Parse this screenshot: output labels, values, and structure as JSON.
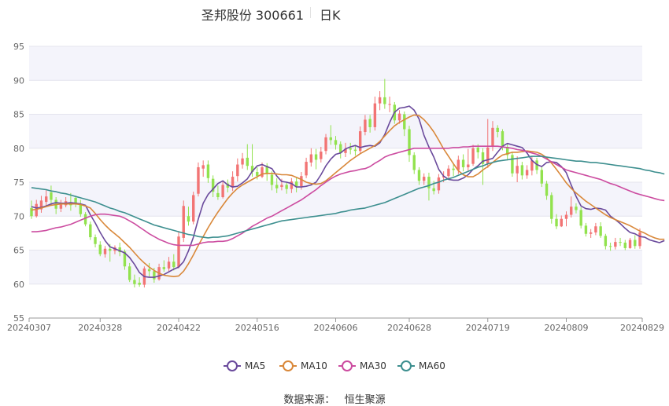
{
  "header": {
    "stock_name": "圣邦股份 300661",
    "period": "日K"
  },
  "source": {
    "label": "数据来源：",
    "provider": "恒生聚源"
  },
  "colors": {
    "up": "#f27474",
    "down": "#92e24e",
    "ma5": "#6a4a9c",
    "ma10": "#d9883a",
    "ma30": "#cc4ca0",
    "ma60": "#3d8f8f",
    "plot_bg_band": "#f4f4fb",
    "grid": "#e4e4ee"
  },
  "chart_data": {
    "type": "candlestick",
    "title": "圣邦股份 300661 日K",
    "ylim": [
      55,
      95
    ],
    "y_ticks": [
      55,
      60,
      65,
      70,
      75,
      80,
      85,
      90,
      95
    ],
    "x_tick_labels": [
      "20240307",
      "20240328",
      "20240422",
      "20240516",
      "20240606",
      "20240628",
      "20240719",
      "20240809",
      "20240829"
    ],
    "x_tick_indices": [
      0,
      14,
      30,
      46,
      62,
      77,
      93,
      109,
      124
    ],
    "candles": [
      [
        71.2,
        70.0,
        72.3,
        69.6
      ],
      [
        70.0,
        71.8,
        72.4,
        69.8
      ],
      [
        71.0,
        72.3,
        73.0,
        70.5
      ],
      [
        72.1,
        72.9,
        73.8,
        71.5
      ],
      [
        73.5,
        72.4,
        74.5,
        71.9
      ],
      [
        72.4,
        71.1,
        72.8,
        70.3
      ],
      [
        71.1,
        71.7,
        72.4,
        70.6
      ],
      [
        71.6,
        72.2,
        72.8,
        71.3
      ],
      [
        72.0,
        71.6,
        73.4,
        70.8
      ],
      [
        72.7,
        71.8,
        73.0,
        71.3
      ],
      [
        71.8,
        70.3,
        72.4,
        69.9
      ],
      [
        70.3,
        68.8,
        70.6,
        68.5
      ],
      [
        68.8,
        66.9,
        69.2,
        66.5
      ],
      [
        66.9,
        65.9,
        67.3,
        65.4
      ],
      [
        65.8,
        64.4,
        66.3,
        64.1
      ],
      [
        64.4,
        65.2,
        65.6,
        63.9
      ],
      [
        65.2,
        64.9,
        65.9,
        63.3
      ],
      [
        64.9,
        65.4,
        65.7,
        64.4
      ],
      [
        65.4,
        64.7,
        66.1,
        64.1
      ],
      [
        64.8,
        62.6,
        65.1,
        62.1
      ],
      [
        62.6,
        60.6,
        63.1,
        60.3
      ],
      [
        60.6,
        60.0,
        61.4,
        59.5
      ],
      [
        60.2,
        59.9,
        61.0,
        59.6
      ],
      [
        59.9,
        62.3,
        62.6,
        59.5
      ],
      [
        62.2,
        61.9,
        63.1,
        61.1
      ],
      [
        61.9,
        60.7,
        62.4,
        60.2
      ],
      [
        60.7,
        62.5,
        63.0,
        60.5
      ],
      [
        62.5,
        62.2,
        63.5,
        61.8
      ],
      [
        62.3,
        63.3,
        64.0,
        61.9
      ],
      [
        63.3,
        62.5,
        64.4,
        62.0
      ],
      [
        62.5,
        67.0,
        67.8,
        62.3
      ],
      [
        66.8,
        71.5,
        72.3,
        66.2
      ],
      [
        70.0,
        69.2,
        71.4,
        68.6
      ],
      [
        69.2,
        73.1,
        73.6,
        68.8
      ],
      [
        73.3,
        77.2,
        77.9,
        72.9
      ],
      [
        77.0,
        77.5,
        78.2,
        75.8
      ],
      [
        77.6,
        75.6,
        78.2,
        74.9
      ],
      [
        75.5,
        73.6,
        76.0,
        72.8
      ],
      [
        73.4,
        72.8,
        74.5,
        72.4
      ],
      [
        72.8,
        74.6,
        75.1,
        72.6
      ],
      [
        74.8,
        74.2,
        75.4,
        73.5
      ],
      [
        74.2,
        75.8,
        76.6,
        73.7
      ],
      [
        75.9,
        77.6,
        78.5,
        75.1
      ],
      [
        77.6,
        78.5,
        79.3,
        77.0
      ],
      [
        78.6,
        77.4,
        80.6,
        76.8
      ],
      [
        77.4,
        76.5,
        80.6,
        75.8
      ],
      [
        76.5,
        75.9,
        77.2,
        75.4
      ],
      [
        75.8,
        77.2,
        77.9,
        75.6
      ],
      [
        77.4,
        76.2,
        77.8,
        75.2
      ],
      [
        76.1,
        74.6,
        76.6,
        73.8
      ],
      [
        74.6,
        74.1,
        75.6,
        73.4
      ],
      [
        74.3,
        74.6,
        75.5,
        73.8
      ],
      [
        74.6,
        74.0,
        75.0,
        73.3
      ],
      [
        74.0,
        75.1,
        75.6,
        73.4
      ],
      [
        75.1,
        74.4,
        75.8,
        73.5
      ],
      [
        74.4,
        75.9,
        76.5,
        73.9
      ],
      [
        76.0,
        78.0,
        78.6,
        75.6
      ],
      [
        77.9,
        79.1,
        80.0,
        77.3
      ],
      [
        79.1,
        78.3,
        79.9,
        76.9
      ],
      [
        78.4,
        79.5,
        80.2,
        77.9
      ],
      [
        79.6,
        81.6,
        82.1,
        79.1
      ],
      [
        81.6,
        81.2,
        83.4,
        80.5
      ],
      [
        81.2,
        80.5,
        81.8,
        79.8
      ],
      [
        80.6,
        79.3,
        81.0,
        78.5
      ],
      [
        79.3,
        79.9,
        80.8,
        78.7
      ],
      [
        80.0,
        79.8,
        80.8,
        79.1
      ],
      [
        79.8,
        79.6,
        80.5,
        78.9
      ],
      [
        79.6,
        82.5,
        83.2,
        79.3
      ],
      [
        82.4,
        84.2,
        84.9,
        81.9
      ],
      [
        84.3,
        83.1,
        84.9,
        82.3
      ],
      [
        83.1,
        86.6,
        87.6,
        82.6
      ],
      [
        86.6,
        87.5,
        88.4,
        85.6
      ],
      [
        87.5,
        86.5,
        90.2,
        85.8
      ],
      [
        86.5,
        86.5,
        87.6,
        85.3
      ],
      [
        86.4,
        84.1,
        86.8,
        83.6
      ],
      [
        84.1,
        85.1,
        85.6,
        83.6
      ],
      [
        85.0,
        82.8,
        85.4,
        81.8
      ],
      [
        82.8,
        79.0,
        83.3,
        78.0
      ],
      [
        79.0,
        76.8,
        79.4,
        76.2
      ],
      [
        76.8,
        75.2,
        77.2,
        74.6
      ],
      [
        75.2,
        75.8,
        76.3,
        74.6
      ],
      [
        75.8,
        74.1,
        76.4,
        72.3
      ],
      [
        74.1,
        73.7,
        75.2,
        73.2
      ],
      [
        73.8,
        75.7,
        76.2,
        73.3
      ],
      [
        75.7,
        75.9,
        76.6,
        75.0
      ],
      [
        75.9,
        77.0,
        77.5,
        75.5
      ],
      [
        77.0,
        76.8,
        77.8,
        75.9
      ],
      [
        76.8,
        78.3,
        78.9,
        76.2
      ],
      [
        78.3,
        77.2,
        79.1,
        76.6
      ],
      [
        77.2,
        77.6,
        79.9,
        76.7
      ],
      [
        77.7,
        80.0,
        80.5,
        77.4
      ],
      [
        80.1,
        79.4,
        80.6,
        78.5
      ],
      [
        79.4,
        77.7,
        80.0,
        74.6
      ],
      [
        77.7,
        80.1,
        84.3,
        77.1
      ],
      [
        80.2,
        83.0,
        84.0,
        79.6
      ],
      [
        83.0,
        82.4,
        83.4,
        81.6
      ],
      [
        82.5,
        80.2,
        82.8,
        79.7
      ],
      [
        80.2,
        79.0,
        80.6,
        78.2
      ],
      [
        79.0,
        76.3,
        79.5,
        75.8
      ],
      [
        76.3,
        77.4,
        78.8,
        75.0
      ],
      [
        77.5,
        76.0,
        78.0,
        75.4
      ],
      [
        76.0,
        76.8,
        77.5,
        75.5
      ],
      [
        76.7,
        78.2,
        78.8,
        76.0
      ],
      [
        78.2,
        76.8,
        78.6,
        76.2
      ],
      [
        76.8,
        74.8,
        77.2,
        74.3
      ],
      [
        74.8,
        73.0,
        75.2,
        72.4
      ],
      [
        73.1,
        69.6,
        73.5,
        68.9
      ],
      [
        69.6,
        68.5,
        70.3,
        68.1
      ],
      [
        68.5,
        69.6,
        70.1,
        68.4
      ],
      [
        69.6,
        70.2,
        70.7,
        68.5
      ],
      [
        70.2,
        71.4,
        72.9,
        69.8
      ],
      [
        71.4,
        70.9,
        71.9,
        70.4
      ],
      [
        70.9,
        68.6,
        71.3,
        68.2
      ],
      [
        68.6,
        67.4,
        69.0,
        67.0
      ],
      [
        67.4,
        67.6,
        68.1,
        66.8
      ],
      [
        67.6,
        68.5,
        69.0,
        67.2
      ],
      [
        68.5,
        67.1,
        69.1,
        66.8
      ],
      [
        67.1,
        65.6,
        67.4,
        65.1
      ],
      [
        65.6,
        65.5,
        66.1,
        64.9
      ],
      [
        65.5,
        66.2,
        66.8,
        65.1
      ],
      [
        66.2,
        66.1,
        66.8,
        65.6
      ],
      [
        66.1,
        65.3,
        66.5,
        65.0
      ],
      [
        65.3,
        66.5,
        66.8,
        65.2
      ],
      [
        66.5,
        65.6,
        67.2,
        65.2
      ],
      [
        65.6,
        67.6,
        68.2,
        65.2
      ]
    ],
    "series": [
      {
        "name": "MA5",
        "values": [
          71.4,
          71.2,
          71.3,
          71.5,
          71.8,
          72.0,
          71.9,
          71.9,
          72.0,
          71.9,
          71.8,
          71.6,
          70.2,
          69.0,
          67.6,
          66.4,
          65.5,
          65.2,
          64.9,
          64.6,
          63.9,
          62.9,
          61.7,
          61.1,
          61.0,
          61.0,
          61.2,
          61.4,
          61.8,
          62.2,
          62.5,
          63.3,
          64.9,
          66.9,
          69.6,
          71.9,
          73.2,
          74.0,
          74.8,
          75.2,
          74.6,
          74.3,
          74.4,
          74.9,
          75.5,
          76.6,
          77.4,
          77.6,
          77.3,
          77.0,
          75.9,
          75.1,
          75.0,
          74.8,
          74.3,
          74.3,
          74.4,
          74.6,
          75.0,
          76.1,
          77.4,
          78.4,
          79.1,
          79.3,
          79.9,
          80.2,
          80.4,
          80.1,
          80.3,
          80.4,
          80.3,
          80.8,
          82.0,
          83.8,
          85.3,
          85.9,
          86.0,
          86.2,
          85.6,
          84.3,
          81.9,
          80.2,
          78.7,
          76.9,
          75.9,
          75.4,
          75.3,
          75.3,
          75.6,
          76.1,
          76.9,
          77.4,
          78.1,
          78.3,
          78.5,
          79.4,
          80.3,
          80.7,
          80.5,
          80.3,
          80.1,
          79.3,
          78.2,
          77.6,
          77.3,
          77.9,
          78.0,
          77.9,
          77.3,
          76.4,
          74.6,
          72.9,
          71.5,
          71.1,
          71.0,
          71.2,
          71.1,
          70.9,
          70.0,
          69.5,
          68.9,
          68.2,
          67.6,
          67.4,
          67.0,
          66.9,
          66.5,
          66.3,
          66.1,
          66.4
        ]
      },
      {
        "name": "MA10",
        "values": [
          70.9,
          71.0,
          71.2,
          71.4,
          71.6,
          71.7,
          71.8,
          71.8,
          71.8,
          71.8,
          71.7,
          71.5,
          71.2,
          70.4,
          69.5,
          68.7,
          68.0,
          67.4,
          66.8,
          66.1,
          65.4,
          64.6,
          63.8,
          63.1,
          62.5,
          62.0,
          61.6,
          61.3,
          61.2,
          61.1,
          61.2,
          61.9,
          63.0,
          64.3,
          65.7,
          67.0,
          68.3,
          69.5,
          70.6,
          71.6,
          72.6,
          73.4,
          74.1,
          74.6,
          75.0,
          75.4,
          75.8,
          76.2,
          76.3,
          76.3,
          76.2,
          76.1,
          76.1,
          76.0,
          75.7,
          75.4,
          75.0,
          74.8,
          74.7,
          74.8,
          75.2,
          75.8,
          76.4,
          77.0,
          77.6,
          78.2,
          78.7,
          79.2,
          79.6,
          80.0,
          80.4,
          81.0,
          81.8,
          82.6,
          83.3,
          83.8,
          84.2,
          84.6,
          84.9,
          84.8,
          84.2,
          83.4,
          82.4,
          81.2,
          79.9,
          78.8,
          77.7,
          76.7,
          76.1,
          75.8,
          75.8,
          76.2,
          76.8,
          77.3,
          77.9,
          78.5,
          79.0,
          79.2,
          79.4,
          79.4,
          79.5,
          79.6,
          79.5,
          79.4,
          79.1,
          78.6,
          77.8,
          76.9,
          75.9,
          74.9,
          74.1,
          73.4,
          72.8,
          72.2,
          71.7,
          71.2,
          70.7,
          70.2,
          69.8,
          69.5,
          69.2,
          68.9,
          68.6,
          68.2,
          67.8,
          67.5,
          67.1,
          66.8,
          66.6,
          66.6
        ]
      },
      {
        "name": "MA30",
        "values": [
          67.7,
          67.7,
          67.8,
          67.9,
          68.1,
          68.3,
          68.4,
          68.6,
          68.8,
          69.1,
          69.4,
          69.7,
          70.0,
          70.2,
          70.3,
          70.3,
          70.2,
          70.1,
          70.0,
          69.7,
          69.3,
          68.9,
          68.4,
          67.9,
          67.4,
          67.0,
          66.6,
          66.3,
          66.0,
          65.8,
          65.7,
          65.7,
          65.7,
          65.7,
          65.9,
          66.1,
          66.2,
          66.2,
          66.3,
          66.3,
          66.4,
          66.7,
          67.1,
          67.5,
          68.0,
          68.5,
          68.9,
          69.3,
          69.7,
          70.0,
          70.4,
          70.8,
          71.2,
          71.6,
          72.0,
          72.4,
          72.9,
          73.4,
          73.9,
          74.5,
          75.0,
          75.5,
          75.9,
          76.2,
          76.4,
          76.6,
          76.7,
          76.9,
          77.0,
          77.3,
          77.8,
          78.2,
          78.7,
          79.0,
          79.2,
          79.4,
          79.6,
          79.8,
          80.0,
          80.0,
          80.0,
          80.0,
          80.0,
          80.0,
          80.0,
          80.0,
          80.1,
          80.1,
          80.2,
          80.2,
          80.3,
          80.3,
          80.3,
          80.3,
          80.3,
          80.3,
          80.2,
          80.1,
          80.0,
          79.8,
          79.7,
          79.5,
          79.3,
          79.1,
          78.8,
          78.4,
          78.0,
          77.6,
          77.2,
          76.8,
          76.6,
          76.4,
          76.2,
          76.0,
          75.8,
          75.6,
          75.4,
          75.1,
          74.8,
          74.6,
          74.3,
          74.0,
          73.7,
          73.4,
          73.2,
          73.0,
          72.8,
          72.6,
          72.4,
          72.3
        ]
      },
      {
        "name": "MA60",
        "values": [
          74.2,
          74.1,
          74.0,
          73.9,
          73.7,
          73.6,
          73.4,
          73.3,
          73.1,
          72.9,
          72.7,
          72.5,
          72.3,
          72.1,
          71.8,
          71.5,
          71.2,
          71.0,
          70.7,
          70.5,
          70.2,
          69.9,
          69.6,
          69.3,
          69.0,
          68.7,
          68.5,
          68.3,
          68.1,
          67.9,
          67.7,
          67.5,
          67.3,
          67.2,
          67.0,
          66.9,
          66.8,
          66.9,
          66.9,
          67.0,
          67.1,
          67.3,
          67.5,
          67.7,
          67.9,
          68.1,
          68.3,
          68.5,
          68.7,
          68.9,
          69.1,
          69.3,
          69.4,
          69.5,
          69.6,
          69.7,
          69.8,
          69.9,
          70.0,
          70.1,
          70.2,
          70.3,
          70.4,
          70.6,
          70.7,
          70.9,
          71.0,
          71.1,
          71.2,
          71.4,
          71.6,
          71.8,
          72.0,
          72.3,
          72.6,
          72.9,
          73.2,
          73.5,
          73.8,
          74.1,
          74.3,
          74.5,
          74.8,
          75.0,
          75.3,
          75.5,
          75.7,
          76.0,
          76.3,
          76.6,
          76.9,
          77.2,
          77.4,
          77.7,
          77.9,
          78.1,
          78.2,
          78.3,
          78.4,
          78.5,
          78.6,
          78.7,
          78.8,
          78.8,
          78.8,
          78.7,
          78.6,
          78.5,
          78.4,
          78.3,
          78.2,
          78.1,
          78.1,
          78.0,
          77.9,
          77.9,
          77.8,
          77.7,
          77.6,
          77.5,
          77.4,
          77.3,
          77.2,
          77.1,
          77.0,
          76.8,
          76.7,
          76.5,
          76.4,
          76.2
        ]
      }
    ]
  }
}
